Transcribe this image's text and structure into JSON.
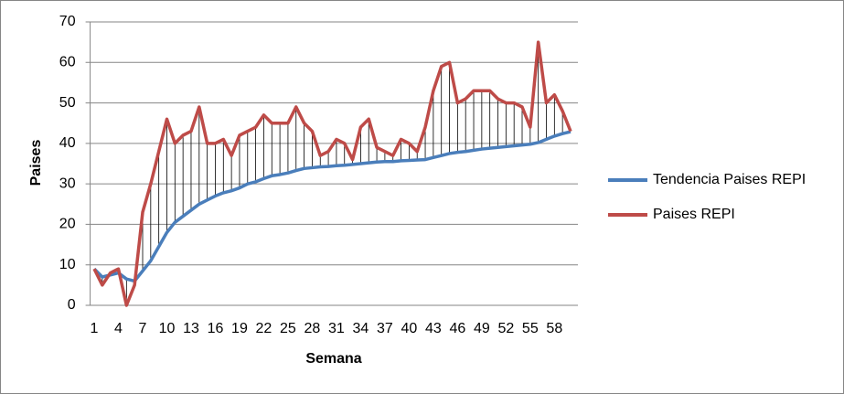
{
  "chart_data": {
    "type": "line",
    "x_label": "Semana",
    "y_label": "Paises",
    "categories": [
      1,
      null,
      null,
      4,
      null,
      null,
      7,
      null,
      null,
      10,
      null,
      null,
      13,
      null,
      null,
      16,
      null,
      null,
      19,
      null,
      null,
      22,
      null,
      null,
      25,
      null,
      null,
      28,
      null,
      null,
      31,
      null,
      null,
      34,
      null,
      null,
      37,
      null,
      null,
      40,
      null,
      null,
      43,
      null,
      null,
      46,
      null,
      null,
      49,
      null,
      null,
      52,
      null,
      null,
      55,
      null,
      null,
      58,
      null,
      null
    ],
    "series": [
      {
        "name": "Tendencia Paises REPI",
        "color": "#4a7ebb",
        "values": [
          9,
          7,
          7.5,
          8,
          6.5,
          6,
          8.5,
          11,
          14.5,
          18,
          20.5,
          22,
          23.5,
          25,
          26,
          27,
          27.8,
          28.3,
          29,
          30,
          30.5,
          31.3,
          32,
          32.3,
          32.7,
          33.3,
          33.8,
          34,
          34.2,
          34.3,
          34.5,
          34.6,
          34.8,
          35,
          35.2,
          35.4,
          35.5,
          35.5,
          35.7,
          35.8,
          35.9,
          36,
          36.5,
          37,
          37.5,
          37.8,
          38,
          38.3,
          38.6,
          38.8,
          39,
          39.2,
          39.4,
          39.6,
          39.8,
          40.2,
          41,
          41.8,
          42.4,
          42.9
        ]
      },
      {
        "name": "Paises REPI",
        "color": "#be4b48",
        "values": [
          9,
          5,
          8,
          9,
          0,
          5,
          23,
          30,
          38,
          46,
          40,
          42,
          43,
          49,
          40,
          40,
          41,
          37,
          42,
          43,
          44,
          47,
          45,
          45,
          45,
          49,
          45,
          43,
          37,
          38,
          41,
          40,
          36,
          44,
          46,
          39,
          38,
          37,
          41,
          40,
          38,
          44,
          53,
          59,
          60,
          50,
          51,
          53,
          53,
          53,
          51,
          50,
          50,
          49,
          44,
          65,
          50,
          52,
          48,
          43
        ]
      }
    ],
    "ylim": [
      0,
      70
    ],
    "yticks": [
      0,
      10,
      20,
      30,
      40,
      50,
      60,
      70
    ],
    "grid": true,
    "high_low_lines": true,
    "legend": "right"
  }
}
